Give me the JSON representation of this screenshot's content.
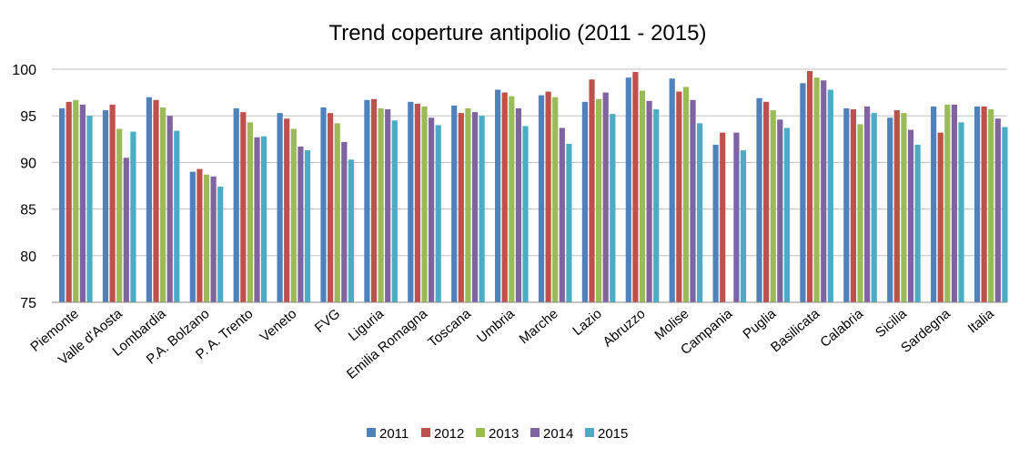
{
  "chart_data": {
    "type": "bar",
    "title": "Trend coperture antipolio (2011 - 2015)",
    "xlabel": "",
    "ylabel": "",
    "ylim": [
      75,
      100
    ],
    "yticks": [
      75,
      80,
      85,
      90,
      95,
      100
    ],
    "grid": true,
    "legend_position": "bottom",
    "categories": [
      "Piemonte",
      "Valle d'Aosta",
      "Lombardia",
      "P.A. Bolzano",
      "P. A. Trento",
      "Veneto",
      "FVG",
      "Liguria",
      "Emilia Romagna",
      "Toscana",
      "Umbria",
      "Marche",
      "Lazio",
      "Abruzzo",
      "Molise",
      "Campania",
      "Puglia",
      "Basilicata",
      "Calabria",
      "Sicilia",
      "Sardegna",
      "Italia"
    ],
    "series": [
      {
        "name": "2011",
        "color": "#4f81bd",
        "values": [
          95.8,
          95.6,
          97.0,
          89.0,
          95.8,
          95.3,
          95.9,
          96.7,
          96.5,
          96.1,
          97.8,
          97.2,
          96.5,
          99.1,
          99.0,
          91.9,
          96.9,
          98.5,
          95.8,
          94.8,
          96.0,
          96.0
        ]
      },
      {
        "name": "2012",
        "color": "#c0504d",
        "values": [
          96.5,
          96.2,
          96.7,
          89.3,
          95.4,
          94.7,
          95.3,
          96.8,
          96.3,
          95.3,
          97.5,
          97.6,
          98.9,
          99.7,
          97.6,
          93.2,
          96.5,
          99.8,
          95.7,
          95.6,
          93.2,
          96.0
        ]
      },
      {
        "name": "2013",
        "color": "#9bbb59",
        "values": [
          96.7,
          93.6,
          95.9,
          88.7,
          94.3,
          93.6,
          94.2,
          95.8,
          96.0,
          95.8,
          97.1,
          97.0,
          96.8,
          97.7,
          98.1,
          null,
          95.6,
          99.1,
          94.1,
          95.3,
          96.2,
          95.7
        ]
      },
      {
        "name": "2014",
        "color": "#8064a2",
        "values": [
          96.2,
          90.5,
          95.0,
          88.5,
          92.7,
          91.7,
          92.2,
          95.7,
          94.8,
          95.4,
          95.8,
          93.7,
          97.5,
          96.6,
          96.7,
          93.2,
          94.6,
          98.8,
          96.0,
          93.5,
          96.2,
          94.7
        ]
      },
      {
        "name": "2015",
        "color": "#4bacc6",
        "values": [
          95.0,
          93.3,
          93.4,
          87.4,
          92.8,
          91.3,
          90.3,
          94.5,
          94.0,
          95.0,
          93.9,
          92.0,
          95.2,
          95.7,
          94.2,
          91.3,
          93.7,
          97.8,
          95.3,
          91.9,
          94.3,
          93.8
        ]
      }
    ]
  }
}
